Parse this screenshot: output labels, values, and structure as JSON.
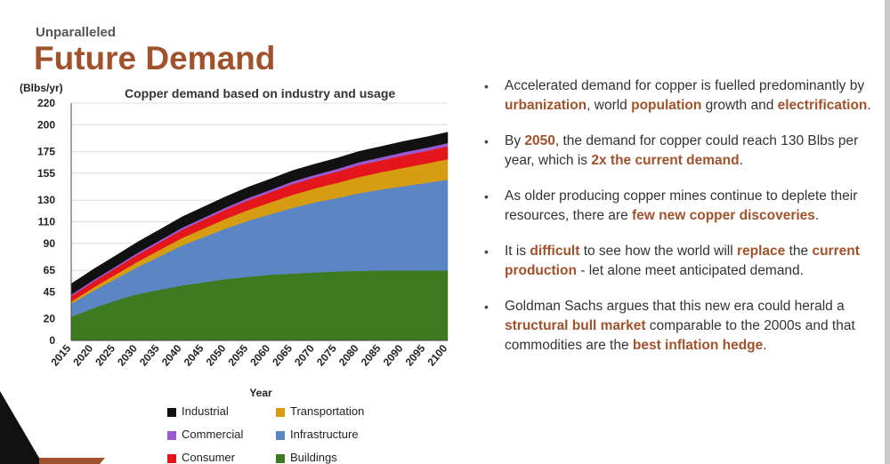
{
  "header": {
    "kicker": "Unparalleled",
    "title": "Future Demand"
  },
  "chart_data": {
    "type": "area",
    "stacked": true,
    "title": "Copper demand based on industry and usage",
    "ylabel": "(Blbs/yr)",
    "xlabel": "Year",
    "x": [
      2015,
      2020,
      2025,
      2030,
      2035,
      2040,
      2045,
      2050,
      2055,
      2060,
      2065,
      2070,
      2075,
      2080,
      2085,
      2090,
      2095,
      2100
    ],
    "x_tick_labels": [
      "2015",
      "2020",
      "2025",
      "2030",
      "2035",
      "2040",
      "2045",
      "2050",
      "2055",
      "2060",
      "2065",
      "2070",
      "2075",
      "2080",
      "2085",
      "2090",
      "2095",
      "2100"
    ],
    "y_ticks": [
      0,
      20,
      45,
      65,
      90,
      110,
      130,
      155,
      175,
      200,
      220
    ],
    "ylim": [
      0,
      220
    ],
    "grid": true,
    "legend_placement": "bottom",
    "series": [
      {
        "name": "Buildings",
        "color": "#3e7a1f",
        "values": [
          22,
          30,
          37,
          43,
          47,
          51,
          54,
          57,
          59,
          61,
          62,
          63,
          64,
          64.5,
          65,
          65,
          65,
          65
        ]
      },
      {
        "name": "Infrastructure",
        "color": "#5b86c4",
        "values": [
          12,
          16,
          20,
          25,
          31,
          37,
          42,
          47,
          52,
          56,
          61,
          65,
          68,
          72,
          75,
          78,
          81,
          84
        ]
      },
      {
        "name": "Transportation",
        "color": "#d69c12",
        "values": [
          2,
          3,
          4,
          5,
          6,
          7,
          8,
          9,
          10,
          11,
          12,
          13,
          14,
          15,
          16,
          17,
          18,
          19
        ]
      },
      {
        "name": "Consumer",
        "color": "#e4161c",
        "values": [
          5,
          5.5,
          6,
          6.5,
          7,
          7.5,
          8,
          8.5,
          9,
          9.5,
          10,
          10,
          10.5,
          11,
          11,
          11.5,
          11.5,
          12
        ]
      },
      {
        "name": "Commercial",
        "color": "#9b59d0",
        "values": [
          1.5,
          1.5,
          1.5,
          1.8,
          1.8,
          2,
          2,
          2,
          2.2,
          2.2,
          2.5,
          2.5,
          2.5,
          2.8,
          2.8,
          3,
          3,
          3
        ]
      },
      {
        "name": "Industrial",
        "color": "#111111",
        "values": [
          10,
          10,
          10,
          10,
          10,
          10,
          10,
          10,
          10,
          10,
          10,
          10,
          10,
          10,
          10,
          10,
          10,
          10
        ]
      }
    ],
    "legend": [
      {
        "name": "Industrial",
        "color": "#111111"
      },
      {
        "name": "Transportation",
        "color": "#d69c12"
      },
      {
        "name": "Commercial",
        "color": "#9b59d0"
      },
      {
        "name": "Infrastructure",
        "color": "#5b86c4"
      },
      {
        "name": "Consumer",
        "color": "#e4161c"
      },
      {
        "name": "Buildings",
        "color": "#3e7a1f"
      }
    ]
  },
  "bullets": [
    [
      {
        "t": "Accelerated demand for copper is fuelled predominantly by "
      },
      {
        "t": "urbanization",
        "h": true
      },
      {
        "t": ", world "
      },
      {
        "t": "population",
        "h": true
      },
      {
        "t": " growth and "
      },
      {
        "t": "electrification",
        "h": true
      },
      {
        "t": "."
      }
    ],
    [
      {
        "t": "By "
      },
      {
        "t": "2050",
        "h": true
      },
      {
        "t": ", the demand for copper could reach 130 Blbs per year, which is "
      },
      {
        "t": "2x the current demand",
        "h": true
      },
      {
        "t": "."
      }
    ],
    [
      {
        "t": "As older producing copper mines continue to deplete their resources, there are "
      },
      {
        "t": "few new copper discoveries",
        "h": true
      },
      {
        "t": "."
      }
    ],
    [
      {
        "t": "It is "
      },
      {
        "t": "difficult",
        "h": true
      },
      {
        "t": " to see how the world will "
      },
      {
        "t": "replace",
        "h": true
      },
      {
        "t": " the "
      },
      {
        "t": "current production",
        "h": true
      },
      {
        "t": " - let alone meet anticipated demand."
      }
    ],
    [
      {
        "t": "Goldman Sachs argues that this new era could herald a "
      },
      {
        "t": "structural bull market",
        "h": true
      },
      {
        "t": " comparable to the 2000s and that commodities are the "
      },
      {
        "t": "best inflation hedge",
        "h": true
      },
      {
        "t": "."
      }
    ]
  ]
}
